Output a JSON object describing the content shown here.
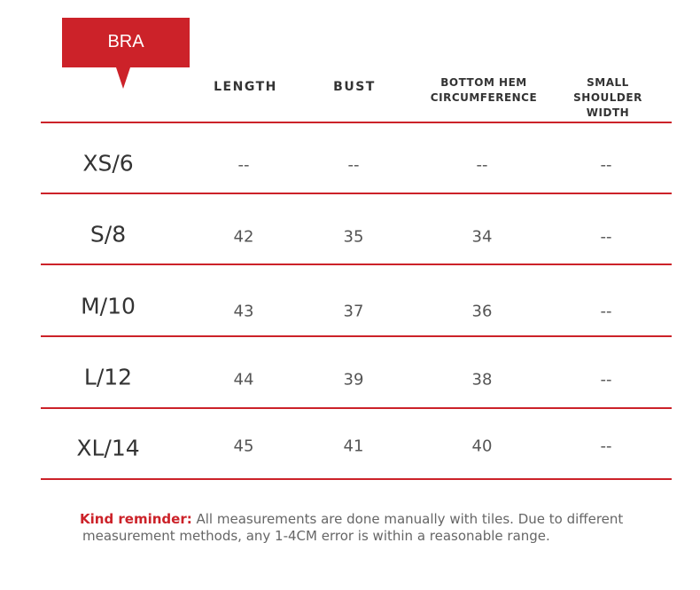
{
  "tag": {
    "label": "BRA"
  },
  "headers": {
    "length": "LENGTH",
    "bust": "BUST",
    "hem": "BOTTOM HEM\nCIRCUMFERENCE",
    "shoulder": "SMALL SHOULDER\nWIDTH"
  },
  "rows": [
    {
      "size": "XS/6",
      "length": "--",
      "bust": "--",
      "hem": "--",
      "shoulder": "--"
    },
    {
      "size": "S/8",
      "length": "42",
      "bust": "35",
      "hem": "34",
      "shoulder": "--"
    },
    {
      "size": "M/10",
      "length": "43",
      "bust": "37",
      "hem": "36",
      "shoulder": "--"
    },
    {
      "size": "L/12",
      "length": "44",
      "bust": "39",
      "hem": "38",
      "shoulder": "--"
    },
    {
      "size": "XL/14",
      "length": "45",
      "bust": "41",
      "hem": "40",
      "shoulder": "--"
    }
  ],
  "reminder": {
    "label": "Kind reminder:",
    "text_line1": " All measurements are done manually with tiles. Due to different",
    "text_line2": "measurement methods, any 1-4CM error is within a reasonable range."
  },
  "colors": {
    "accent": "#cc2229",
    "text": "#333333"
  }
}
